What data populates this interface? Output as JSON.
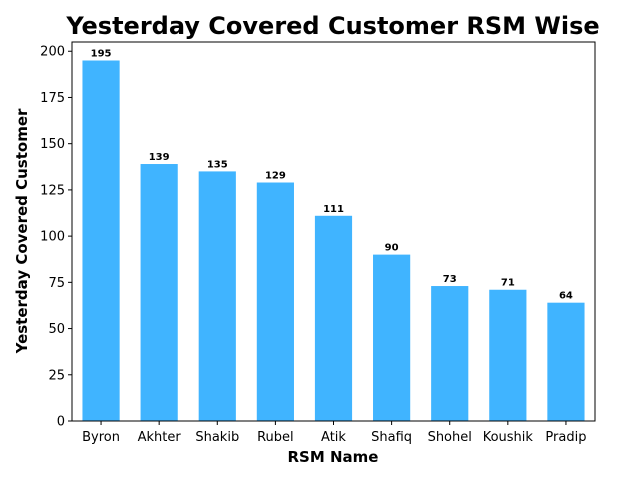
{
  "chart_data": {
    "type": "bar",
    "title": "Yesterday Covered Customer RSM Wise",
    "xlabel": "RSM Name",
    "ylabel": "Yesterday Covered Customer",
    "categories": [
      "Byron",
      "Akhter",
      "Shakib",
      "Rubel",
      "Atik",
      "Shafiq",
      "Shohel",
      "Koushik",
      "Pradip"
    ],
    "values": [
      195,
      139,
      135,
      129,
      111,
      90,
      73,
      71,
      64
    ],
    "data_labels": [
      "195",
      "139",
      "135",
      "129",
      "111",
      "90",
      "73",
      "71",
      "64"
    ],
    "ylim": [
      0,
      205
    ],
    "yticks": [
      0,
      25,
      50,
      75,
      100,
      125,
      150,
      175,
      200
    ],
    "bar_color": "#40b4ff",
    "grid": false,
    "legend": "none"
  }
}
